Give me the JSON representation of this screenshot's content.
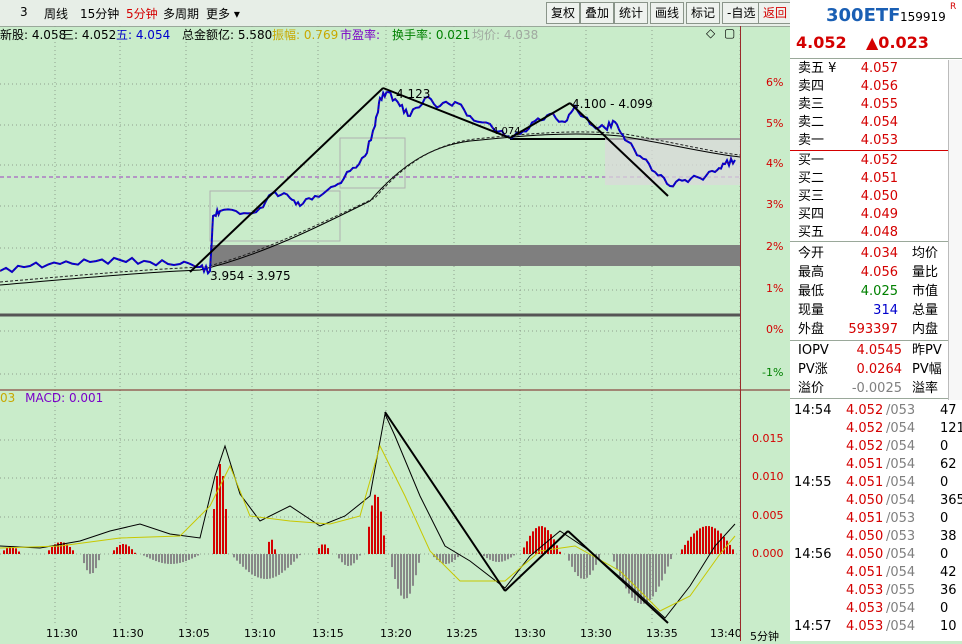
{
  "toolbar": {
    "items": [
      "3",
      "周线",
      "15分钟",
      "5分钟",
      "多周期",
      "更多 ▾"
    ],
    "buttons": [
      "复权",
      "叠加",
      "统计",
      "画线",
      "标记",
      "-自选",
      "返回"
    ]
  },
  "ticker": {
    "name": "300ETF",
    "code": "159919",
    "badge": "R",
    "price": "4.052",
    "change": "▲0.023"
  },
  "infobar": {
    "newest": "新股: 4.058",
    "three": "三: 4.052",
    "five": "五: 4.054",
    "amount": "总金额亿: 5.580",
    "amplitude": "振幅: 0.769",
    "pe": "市盈率:",
    "turnover": "换手率: 0.021",
    "avg": "均价: 4.038"
  },
  "price_axis": [
    "6%",
    "5%",
    "4%",
    "3%",
    "2%",
    "1%",
    "0%",
    "-1%"
  ],
  "macd_axis": [
    "0.015",
    "0.010",
    "0.005",
    "0.000"
  ],
  "macd_label": "MACD: 0.001",
  "macd_prefix": "03",
  "annotations": {
    "range1": "3.954 - 3.975",
    "range2": "4.100 - 4.099",
    "high": "4.123",
    "mid": "4.074"
  },
  "time_axis": [
    "11:30",
    "11:30",
    "13:05",
    "13:10",
    "13:15",
    "13:20",
    "13:25",
    "13:30",
    "13:30",
    "13:35",
    "13:40"
  ],
  "period": "5分钟",
  "orderbook": {
    "asks": [
      {
        "label": "卖五 ¥",
        "price": "4.057"
      },
      {
        "label": "卖四",
        "price": "4.056"
      },
      {
        "label": "卖三",
        "price": "4.055"
      },
      {
        "label": "卖二",
        "price": "4.054"
      },
      {
        "label": "卖一",
        "price": "4.053"
      }
    ],
    "bids": [
      {
        "label": "买一",
        "price": "4.052"
      },
      {
        "label": "买二",
        "price": "4.051"
      },
      {
        "label": "买三",
        "price": "4.050"
      },
      {
        "label": "买四",
        "price": "4.049"
      },
      {
        "label": "买五",
        "price": "4.048"
      }
    ]
  },
  "stats": [
    {
      "l": "今开",
      "v": "4.034",
      "l2": "均价"
    },
    {
      "l": "最高",
      "v": "4.056",
      "l2": "量比"
    },
    {
      "l": "最低",
      "v": "4.025",
      "l2": "市值"
    },
    {
      "l": "现量",
      "v": "314",
      "l2": "总量"
    },
    {
      "l": "外盘",
      "v": "593397",
      "l2": "内盘"
    }
  ],
  "pv": [
    {
      "l": "IOPV",
      "v": "4.0545",
      "l2": "昨PV"
    },
    {
      "l": "PV涨",
      "v": "0.0264",
      "l2": "PV幅"
    },
    {
      "l": "溢价",
      "v": "-0.0025",
      "l2": "溢率"
    }
  ],
  "ticks": [
    {
      "t": "14:54",
      "p": "4.052",
      "s": "/053",
      "v": "47"
    },
    {
      "t": "",
      "p": "4.052",
      "s": "/054",
      "v": "121"
    },
    {
      "t": "",
      "p": "4.052",
      "s": "/054",
      "v": "0"
    },
    {
      "t": "",
      "p": "4.051",
      "s": "/054",
      "v": "62"
    },
    {
      "t": "14:55",
      "p": "4.051",
      "s": "/054",
      "v": "0"
    },
    {
      "t": "",
      "p": "4.050",
      "s": "/054",
      "v": "365"
    },
    {
      "t": "",
      "p": "4.051",
      "s": "/053",
      "v": "0"
    },
    {
      "t": "",
      "p": "4.050",
      "s": "/053",
      "v": "38"
    },
    {
      "t": "14:56",
      "p": "4.050",
      "s": "/054",
      "v": "0"
    },
    {
      "t": "",
      "p": "4.051",
      "s": "/054",
      "v": "42"
    },
    {
      "t": "",
      "p": "4.053",
      "s": "/055",
      "v": "36"
    },
    {
      "t": "",
      "p": "4.053",
      "s": "/054",
      "v": "0"
    },
    {
      "t": "14:57",
      "p": "4.053",
      "s": "/054",
      "v": "10"
    }
  ],
  "colors": {
    "bg": "#c9ecca",
    "up": "#d40000",
    "down": "#008000",
    "price_line": "#0000cc",
    "grid": "#7c8c7c"
  }
}
